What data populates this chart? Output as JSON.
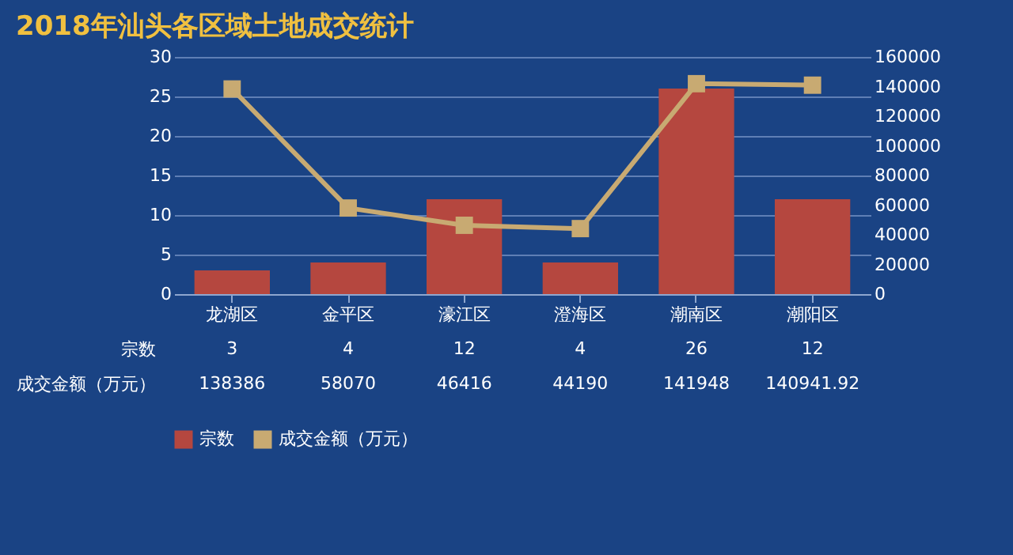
{
  "chart_data": {
    "type": "bar",
    "title": "2018年汕头各区域土地成交统计",
    "categories": [
      "龙湖区",
      "金平区",
      "濠江区",
      "澄海区",
      "潮南区",
      "潮阳区"
    ],
    "series": [
      {
        "name": "宗数",
        "color": "#b5473f",
        "values": [
          3,
          4,
          12,
          4,
          26,
          12
        ]
      },
      {
        "name": "成交金额（万元）",
        "type": "line",
        "axis": "y2",
        "color": "#c8aa72",
        "values": [
          138386,
          58070,
          46416,
          44190,
          141948,
          140941.92
        ]
      }
    ],
    "ylim": [
      0,
      30
    ],
    "yticks": [
      0,
      5,
      10,
      15,
      20,
      25,
      30
    ],
    "y2lim": [
      0,
      160000
    ],
    "y2ticks": [
      0,
      20000,
      40000,
      60000,
      80000,
      100000,
      120000,
      140000,
      160000
    ],
    "grid": "y",
    "marker": "square",
    "data_labels": true,
    "legend": "bottom"
  }
}
